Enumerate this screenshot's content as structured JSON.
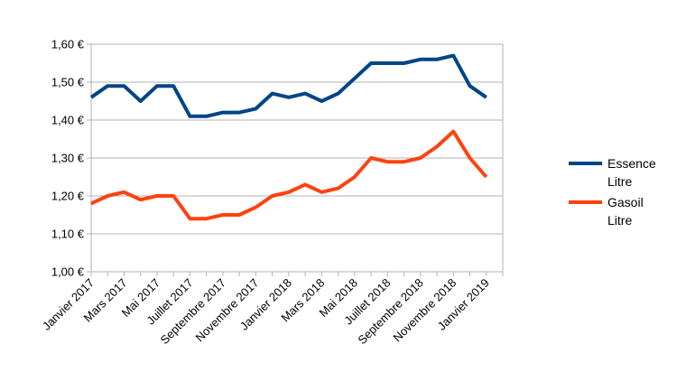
{
  "chart_data": {
    "type": "line",
    "title": "",
    "xlabel": "",
    "ylabel": "",
    "ylim": [
      1.0,
      1.6
    ],
    "y_ticks": [
      "1,00 €",
      "1,10 €",
      "1,20 €",
      "1,30 €",
      "1,40 €",
      "1,50 €",
      "1,60 €"
    ],
    "x_tick_labels": [
      "Janvier 2017",
      "Mars 2017",
      "Mai 2017",
      "Juillet 2017",
      "Septembre 2017",
      "Novembre 2017",
      "Janvier 2018",
      "Mars 2018",
      "Mai 2018",
      "Juillet 2018",
      "Septembre 2018",
      "Novembre 2018",
      "Janvier 2019"
    ],
    "x": [
      "Janvier 2017",
      "Février 2017",
      "Mars 2017",
      "Avril 2017",
      "Mai 2017",
      "Juin 2017",
      "Juillet 2017",
      "Août 2017",
      "Septembre 2017",
      "Octobre 2017",
      "Novembre 2017",
      "Décembre 2017",
      "Janvier 2018",
      "Février 2018",
      "Mars 2018",
      "Avril 2018",
      "Mai 2018",
      "Juin 2018",
      "Juillet 2018",
      "Août 2018",
      "Septembre 2018",
      "Octobre 2018",
      "Novembre 2018",
      "Décembre 2018",
      "Janvier 2019",
      "Février 2019"
    ],
    "grid": true,
    "legend_position": "right",
    "series": [
      {
        "name": "Essence Litre",
        "legend_lines": [
          "Essence",
          "Litre"
        ],
        "color": "#004586",
        "values": [
          1.46,
          1.49,
          1.49,
          1.45,
          1.49,
          1.49,
          1.41,
          1.41,
          1.42,
          1.42,
          1.43,
          1.47,
          1.46,
          1.47,
          1.45,
          1.47,
          1.51,
          1.55,
          1.55,
          1.55,
          1.56,
          1.56,
          1.57,
          1.49,
          1.46,
          null
        ]
      },
      {
        "name": "Gasoil Litre",
        "legend_lines": [
          "Gasoil",
          "Litre"
        ],
        "color": "#ff420e",
        "values": [
          1.18,
          1.2,
          1.21,
          1.19,
          1.2,
          1.2,
          1.14,
          1.14,
          1.15,
          1.15,
          1.17,
          1.2,
          1.21,
          1.23,
          1.21,
          1.22,
          1.25,
          1.3,
          1.29,
          1.29,
          1.3,
          1.33,
          1.37,
          1.3,
          1.25,
          null
        ]
      }
    ]
  }
}
